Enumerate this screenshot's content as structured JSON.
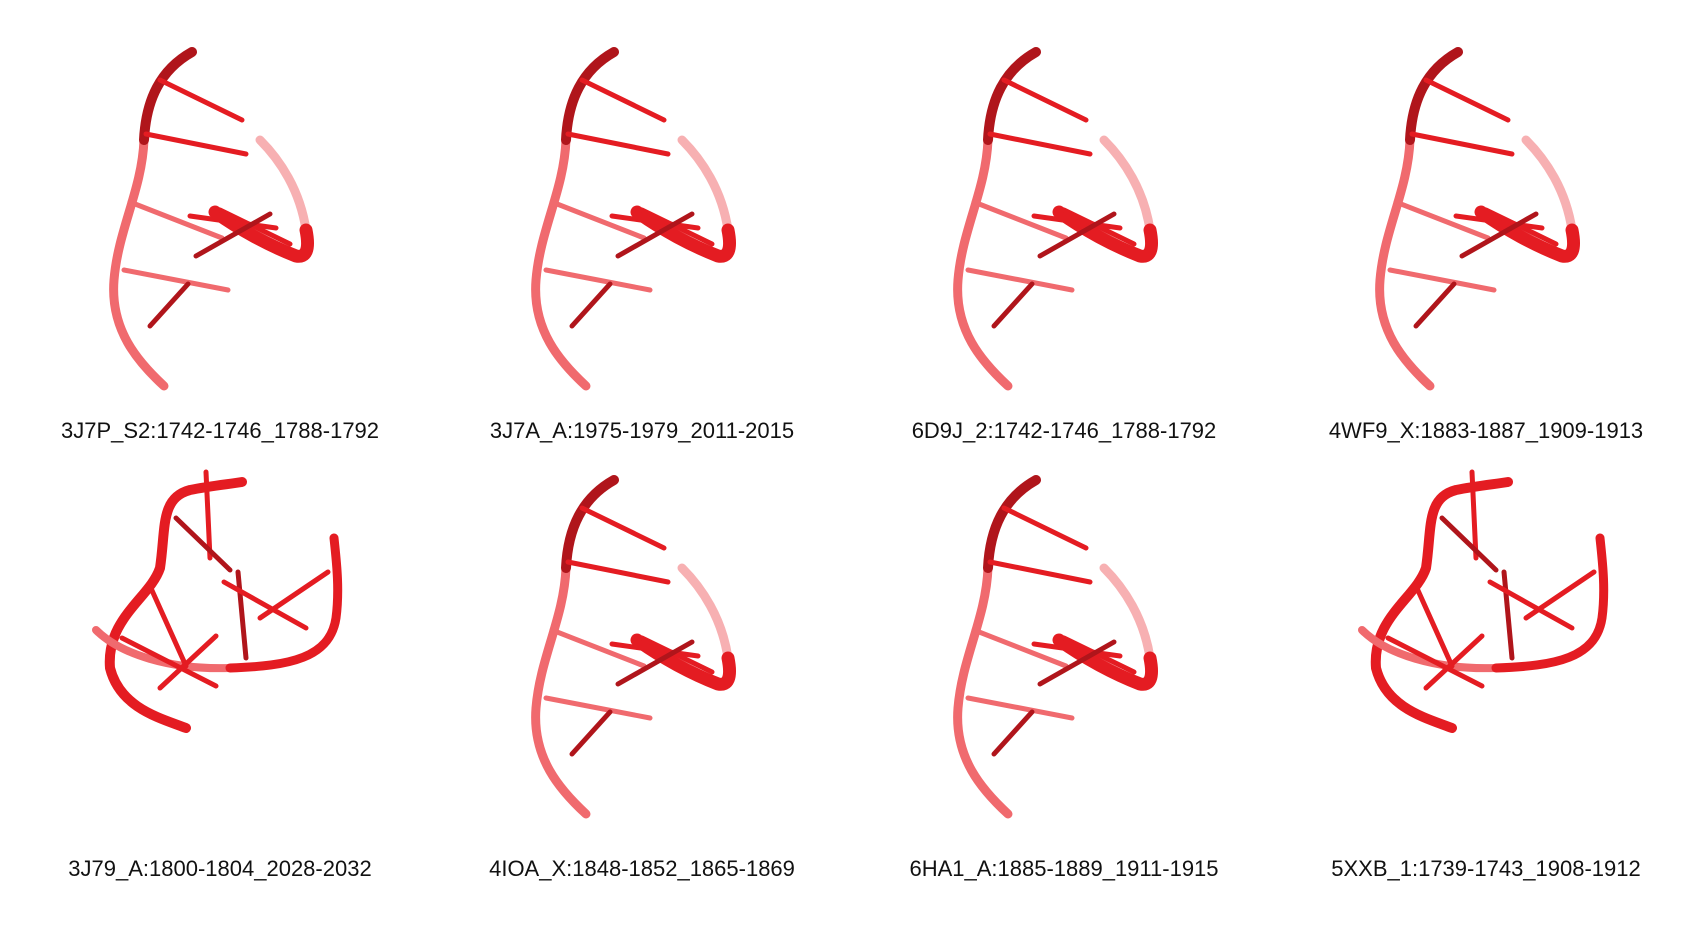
{
  "palette": {
    "dark": "#b0151b",
    "mid": "#e41c22",
    "light": "#f06a6e",
    "pale": "#f7b0b2"
  },
  "panels": [
    {
      "label": "3J7P_S2:1742-1746_1788-1792",
      "shape": "hairpin"
    },
    {
      "label": "3J7A_A:1975-1979_2011-2015",
      "shape": "hairpin"
    },
    {
      "label": "6D9J_2:1742-1746_1788-1792",
      "shape": "hairpin"
    },
    {
      "label": "4WF9_X:1883-1887_1909-1913",
      "shape": "hairpin"
    },
    {
      "label": "3J79_A:1800-1804_2028-2032",
      "shape": "loop"
    },
    {
      "label": "4IOA_X:1848-1852_1865-1869",
      "shape": "hairpin"
    },
    {
      "label": "6HA1_A:1885-1889_1911-1915",
      "shape": "hairpin"
    },
    {
      "label": "5XXB_1:1739-1743_1908-1912",
      "shape": "loop"
    }
  ]
}
